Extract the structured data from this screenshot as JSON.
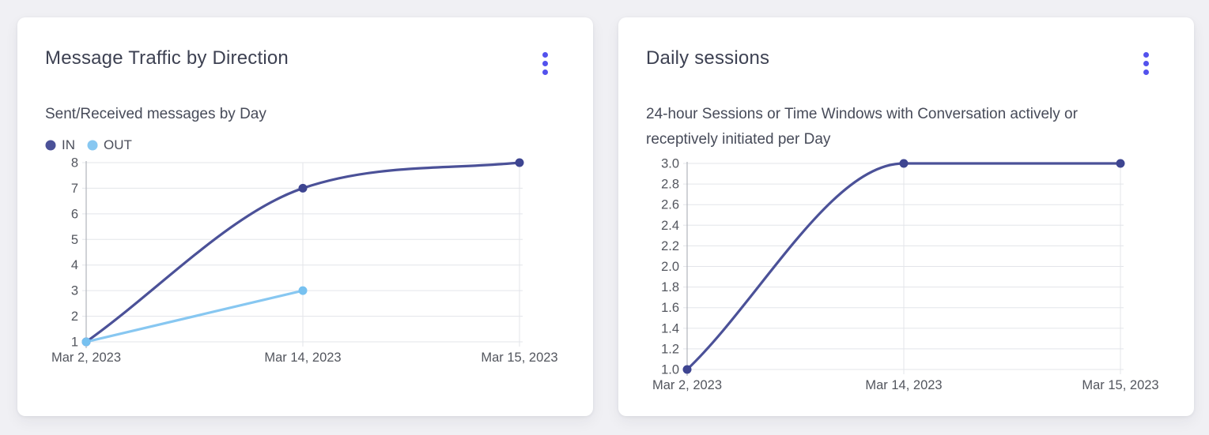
{
  "page": {
    "background": "#f0f0f4"
  },
  "colors": {
    "menu_accent": "#5352ed",
    "grid_line": "#e3e5ea",
    "axis_line": "#b6b9c0",
    "tick_text": "#53565e",
    "title_text": "#3d4152",
    "subtitle_text": "#474b59"
  },
  "cards": [
    {
      "subtitle_lines": [
        "Sent/Received messages by Day"
      ],
      "menu_icon": "kebab-menu"
    },
    {
      "subtitle_lines": [
        "24-hour Sessions or Time Windows with Conversation actively or",
        "receptively initiated per Day"
      ],
      "menu_icon": "kebab-menu"
    }
  ],
  "chart_data": [
    {
      "type": "line",
      "title": "Message Traffic by Direction",
      "subtitle": "Sent/Received messages by Day",
      "categories": [
        "Mar 2, 2023",
        "Mar 14, 2023",
        "Mar 15, 2023"
      ],
      "series": [
        {
          "name": "IN",
          "values": [
            1,
            7,
            8
          ],
          "line_color": "#4b5198",
          "point_color": "#3e4591"
        },
        {
          "name": "OUT",
          "values": [
            1,
            3,
            null
          ],
          "line_color": "#87c7f1",
          "point_color": "#77c1f0"
        }
      ],
      "ylim": [
        1,
        8
      ],
      "y_tick_step": 1,
      "y_tick_decimals": 0,
      "grid": true,
      "legend_position": "top-left",
      "xlabel": "",
      "ylabel": ""
    },
    {
      "type": "line",
      "title": "Daily sessions",
      "subtitle": "24-hour Sessions or Time Windows with Conversation actively or receptively initiated per Day",
      "categories": [
        "Mar 2, 2023",
        "Mar 14, 2023",
        "Mar 15, 2023"
      ],
      "series": [
        {
          "name": "Daily sessions",
          "values": [
            1,
            3,
            3
          ],
          "line_color": "#4b5198",
          "point_color": "#3e4591"
        }
      ],
      "ylim": [
        1,
        3
      ],
      "y_tick_step": 0.2,
      "y_tick_decimals": 1,
      "grid": true,
      "legend_position": "none",
      "xlabel": "",
      "ylabel": ""
    }
  ]
}
